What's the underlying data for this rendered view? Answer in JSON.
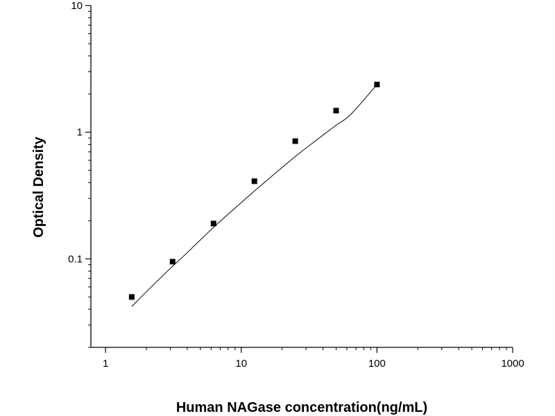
{
  "chart_data": {
    "type": "scatter",
    "xlabel": "Human NAGase concentration(ng/mL)",
    "ylabel": "Optical Density",
    "x_scale": "log",
    "y_scale": "log",
    "xlim": [
      0.78,
      1000
    ],
    "ylim": [
      0.02,
      10
    ],
    "x_ticks": [
      1,
      10,
      100,
      1000
    ],
    "x_tick_labels": [
      "1",
      "10",
      "100",
      "1000"
    ],
    "y_ticks": [
      0.1,
      1,
      10
    ],
    "y_tick_labels": [
      "0.1",
      "1",
      "10"
    ],
    "grid": false,
    "legend": "none",
    "series": [
      {
        "marker": "square",
        "x": [
          1.56,
          3.12,
          6.25,
          12.5,
          25,
          50,
          100
        ],
        "y": [
          0.05,
          0.095,
          0.19,
          0.41,
          0.85,
          1.48,
          2.38
        ]
      }
    ],
    "fit_curve": {
      "x": [
        1.56,
        2,
        3,
        4,
        6,
        8,
        12,
        16,
        24,
        32,
        48,
        64,
        100
      ],
      "y": [
        0.042,
        0.055,
        0.084,
        0.112,
        0.17,
        0.225,
        0.33,
        0.43,
        0.62,
        0.79,
        1.1,
        1.38,
        2.38
      ]
    },
    "colors": {
      "axis": "#000000",
      "marker": "#000000",
      "curve": "#000000"
    }
  }
}
